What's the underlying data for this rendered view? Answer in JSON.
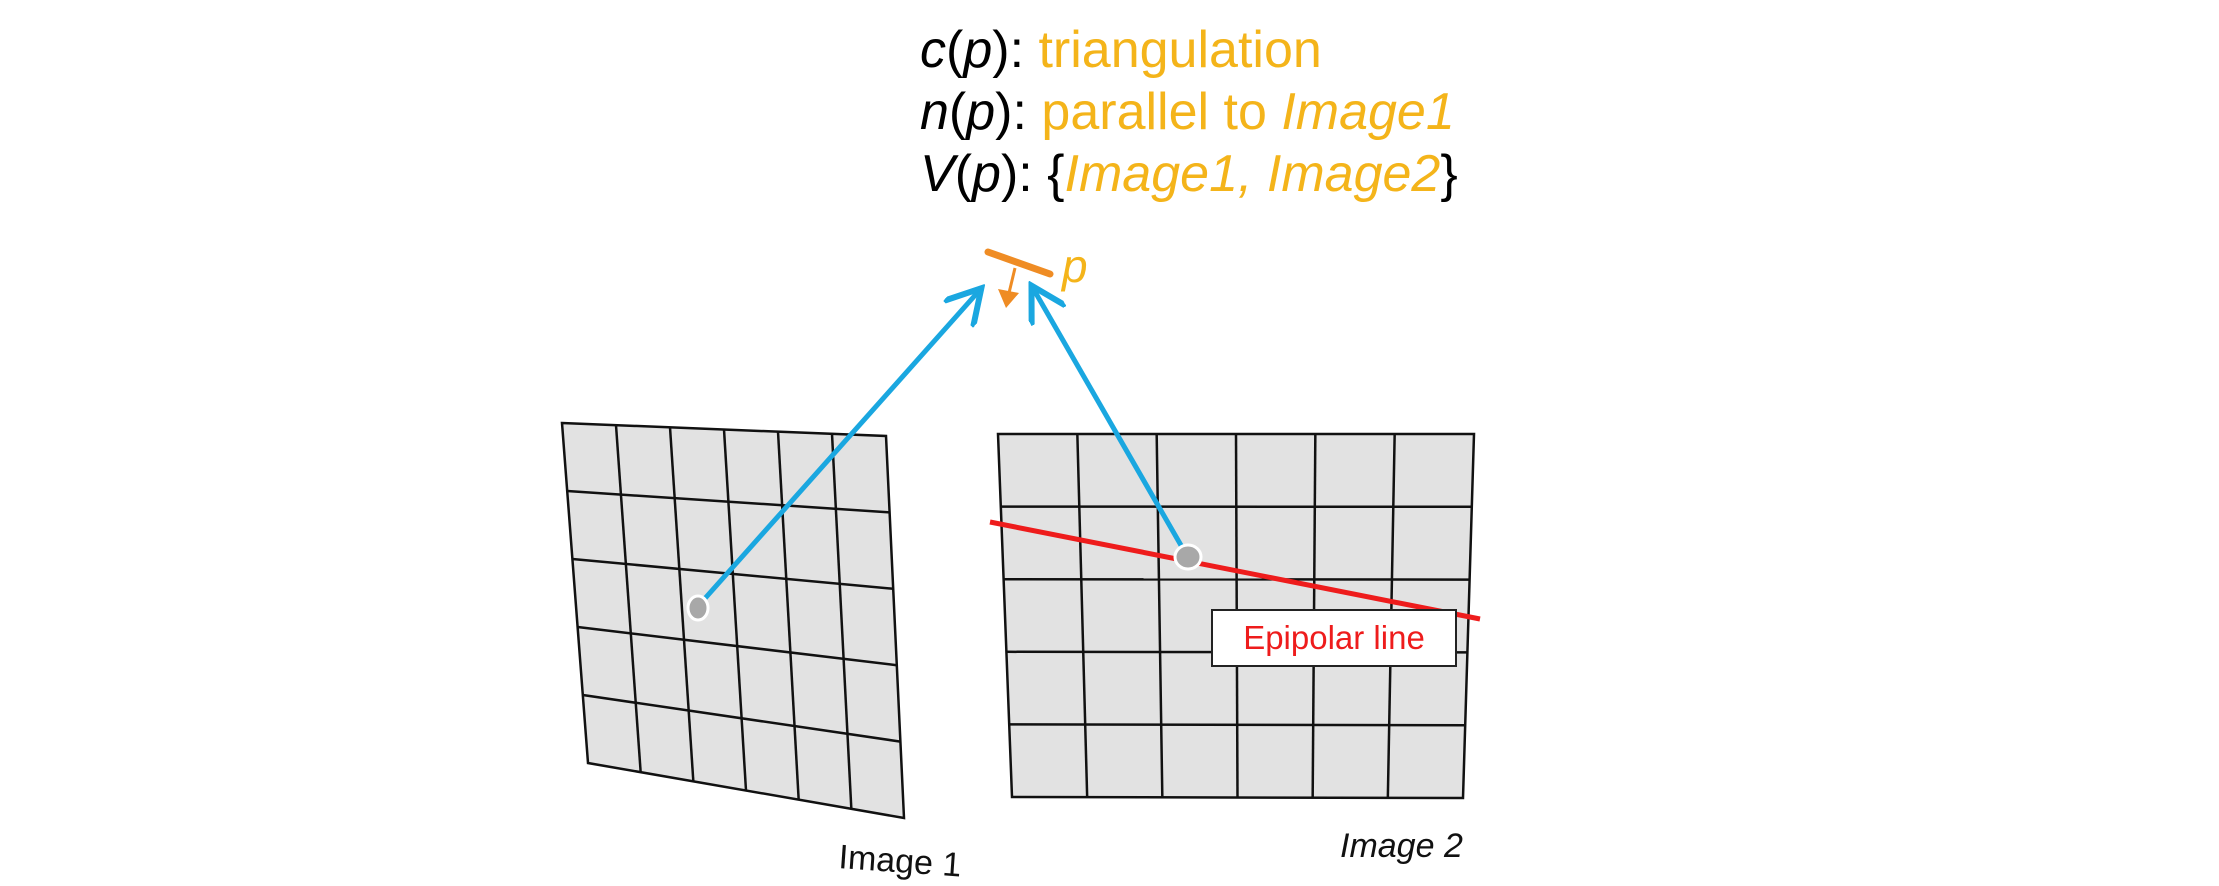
{
  "colors": {
    "accent_text": "#f4b41a",
    "patch": "#ef8c24",
    "ray": "#1aa7e0",
    "epipolar": "#ee1c1c",
    "grid_fill": "#e2e2e2",
    "grid_line": "#111111",
    "point_fill": "#a8a8a8"
  },
  "header": {
    "line1": {
      "fn": "c",
      "arg": "p",
      "sep": ": ",
      "value": "triangulation"
    },
    "line2": {
      "fn": "n",
      "arg": "p",
      "sep": ": ",
      "value": "parallel to ",
      "value_italic": "Image1"
    },
    "line3": {
      "fn": "V",
      "arg": "p",
      "sep": ": ",
      "open": "{",
      "value_italic": "Image1, Image2",
      "close": "}"
    }
  },
  "patch": {
    "label": "p"
  },
  "epipolar_label": "Epipolar line",
  "image1": {
    "label": "Image 1"
  },
  "image2": {
    "label": "Image 2"
  },
  "icons": {
    "normal_arrow": "arrow-down-icon",
    "ray_arrowhead": "arrowhead-icon"
  }
}
